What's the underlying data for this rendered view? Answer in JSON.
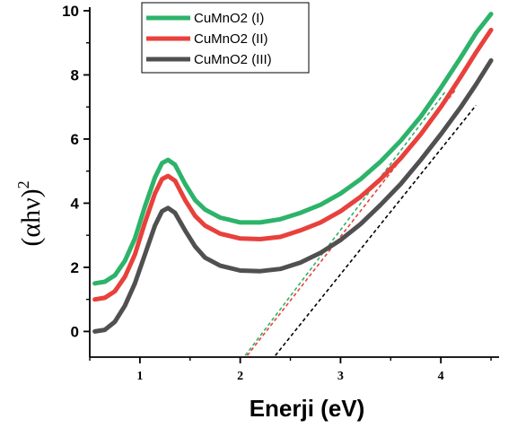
{
  "chart_data": {
    "type": "line",
    "xlabel": "Enerji (eV)",
    "ylabel_main": "(αhν)",
    "ylabel_sup": "2",
    "xlim": [
      0.5,
      4.58
    ],
    "ylim": [
      -0.8,
      10
    ],
    "x_ticks": [
      1,
      2,
      3,
      4
    ],
    "y_ticks": [
      0,
      2,
      4,
      6,
      8,
      10
    ],
    "x_tick_labels": [
      "1",
      "2",
      "3",
      "4"
    ],
    "y_tick_labels": [
      "0",
      "2",
      "4",
      "6",
      "8",
      "10"
    ],
    "legend_position": "top-left",
    "series": [
      {
        "name": "CuMnO2 (I)",
        "color": "#2db36a",
        "points": [
          [
            0.55,
            1.5
          ],
          [
            0.65,
            1.55
          ],
          [
            0.75,
            1.75
          ],
          [
            0.85,
            2.2
          ],
          [
            0.95,
            2.9
          ],
          [
            1.05,
            3.9
          ],
          [
            1.15,
            4.8
          ],
          [
            1.22,
            5.25
          ],
          [
            1.28,
            5.35
          ],
          [
            1.35,
            5.2
          ],
          [
            1.45,
            4.6
          ],
          [
            1.55,
            4.1
          ],
          [
            1.65,
            3.8
          ],
          [
            1.8,
            3.55
          ],
          [
            2.0,
            3.4
          ],
          [
            2.2,
            3.4
          ],
          [
            2.4,
            3.5
          ],
          [
            2.6,
            3.7
          ],
          [
            2.8,
            3.95
          ],
          [
            3.0,
            4.3
          ],
          [
            3.2,
            4.75
          ],
          [
            3.4,
            5.3
          ],
          [
            3.6,
            5.95
          ],
          [
            3.8,
            6.7
          ],
          [
            4.0,
            7.6
          ],
          [
            4.2,
            8.55
          ],
          [
            4.35,
            9.3
          ],
          [
            4.5,
            9.9
          ]
        ]
      },
      {
        "name": "CuMnO2 (II)",
        "color": "#e8413c",
        "points": [
          [
            0.55,
            1.0
          ],
          [
            0.65,
            1.05
          ],
          [
            0.75,
            1.25
          ],
          [
            0.85,
            1.7
          ],
          [
            0.95,
            2.4
          ],
          [
            1.05,
            3.4
          ],
          [
            1.15,
            4.3
          ],
          [
            1.22,
            4.75
          ],
          [
            1.28,
            4.85
          ],
          [
            1.35,
            4.7
          ],
          [
            1.45,
            4.1
          ],
          [
            1.55,
            3.6
          ],
          [
            1.65,
            3.3
          ],
          [
            1.8,
            3.05
          ],
          [
            2.0,
            2.9
          ],
          [
            2.2,
            2.88
          ],
          [
            2.4,
            2.95
          ],
          [
            2.6,
            3.15
          ],
          [
            2.8,
            3.4
          ],
          [
            3.0,
            3.75
          ],
          [
            3.2,
            4.2
          ],
          [
            3.4,
            4.75
          ],
          [
            3.6,
            5.4
          ],
          [
            3.8,
            6.15
          ],
          [
            4.0,
            7.0
          ],
          [
            4.2,
            7.95
          ],
          [
            4.35,
            8.7
          ],
          [
            4.5,
            9.4
          ]
        ]
      },
      {
        "name": "CuMnO2 (III)",
        "color": "#505050",
        "points": [
          [
            0.55,
            0.0
          ],
          [
            0.65,
            0.05
          ],
          [
            0.75,
            0.3
          ],
          [
            0.85,
            0.8
          ],
          [
            0.95,
            1.5
          ],
          [
            1.05,
            2.4
          ],
          [
            1.15,
            3.3
          ],
          [
            1.22,
            3.75
          ],
          [
            1.28,
            3.85
          ],
          [
            1.35,
            3.7
          ],
          [
            1.45,
            3.15
          ],
          [
            1.55,
            2.65
          ],
          [
            1.65,
            2.3
          ],
          [
            1.8,
            2.05
          ],
          [
            2.0,
            1.9
          ],
          [
            2.2,
            1.88
          ],
          [
            2.4,
            1.95
          ],
          [
            2.6,
            2.15
          ],
          [
            2.8,
            2.45
          ],
          [
            3.0,
            2.85
          ],
          [
            3.2,
            3.35
          ],
          [
            3.4,
            3.95
          ],
          [
            3.6,
            4.6
          ],
          [
            3.8,
            5.35
          ],
          [
            4.0,
            6.15
          ],
          [
            4.2,
            7.0
          ],
          [
            4.35,
            7.7
          ],
          [
            4.5,
            8.45
          ]
        ]
      }
    ],
    "tangent_lines": [
      {
        "color": "#2db36a",
        "from": [
          2.05,
          -0.75
        ],
        "to": [
          4.05,
          7.5
        ]
      },
      {
        "color": "#e8413c",
        "from": [
          2.07,
          -0.75
        ],
        "to": [
          4.15,
          7.55
        ]
      },
      {
        "color": "#000000",
        "from": [
          2.35,
          -0.75
        ],
        "to": [
          4.35,
          7.05
        ]
      }
    ]
  }
}
